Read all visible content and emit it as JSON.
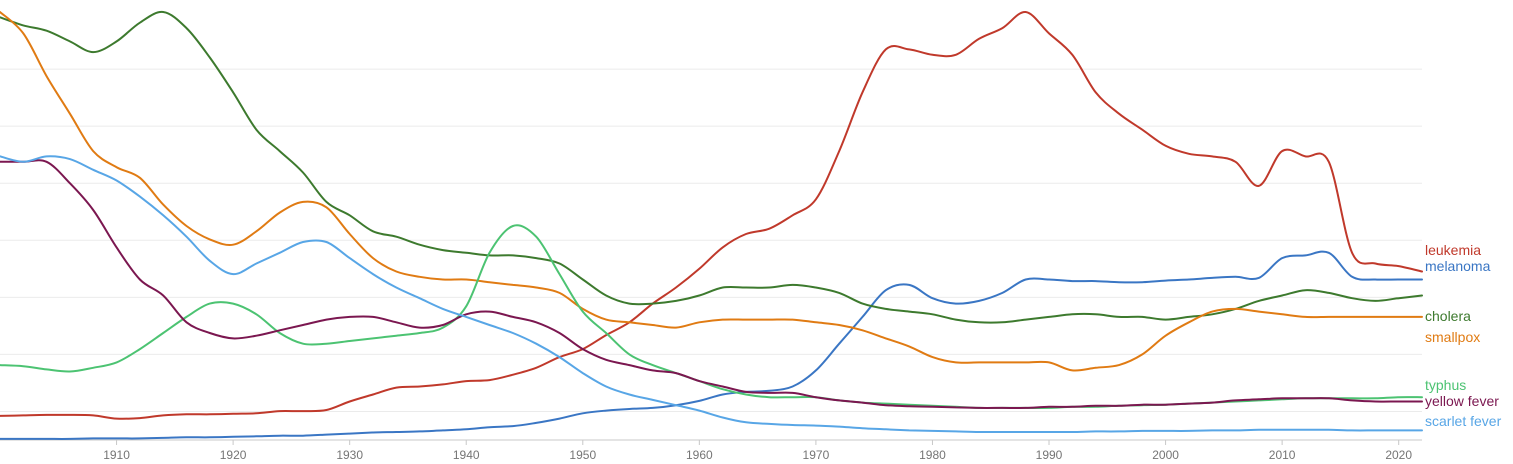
{
  "chart_data": {
    "type": "line",
    "x": [
      1900,
      1902,
      1904,
      1906,
      1908,
      1910,
      1912,
      1914,
      1916,
      1918,
      1920,
      1922,
      1924,
      1926,
      1928,
      1930,
      1932,
      1934,
      1936,
      1938,
      1940,
      1942,
      1944,
      1946,
      1948,
      1950,
      1952,
      1954,
      1956,
      1958,
      1960,
      1962,
      1964,
      1966,
      1968,
      1970,
      1972,
      1974,
      1976,
      1978,
      1980,
      1982,
      1984,
      1986,
      1988,
      1990,
      1992,
      1994,
      1996,
      1998,
      2000,
      2002,
      2004,
      2006,
      2008,
      2010,
      2012,
      2014,
      2016,
      2018,
      2020,
      2022
    ],
    "xlim": [
      1900,
      2022
    ],
    "ylim": [
      0,
      8
    ],
    "x_ticks": [
      1910,
      1920,
      1930,
      1940,
      1950,
      1960,
      1970,
      1980,
      1990,
      2000,
      2010,
      2020
    ],
    "grid": "horizontal",
    "legend": "right-end-labels",
    "series": [
      {
        "name": "leukemia",
        "color": "#c0392b",
        "values": [
          0.45,
          0.46,
          0.47,
          0.47,
          0.46,
          0.4,
          0.41,
          0.46,
          0.48,
          0.48,
          0.49,
          0.5,
          0.54,
          0.54,
          0.56,
          0.72,
          0.85,
          0.98,
          1.0,
          1.04,
          1.1,
          1.12,
          1.22,
          1.35,
          1.55,
          1.7,
          1.96,
          2.2,
          2.55,
          2.85,
          3.2,
          3.6,
          3.85,
          3.95,
          4.2,
          4.5,
          5.4,
          6.5,
          7.3,
          7.3,
          7.2,
          7.2,
          7.5,
          7.7,
          8.0,
          7.6,
          7.2,
          6.5,
          6.1,
          5.8,
          5.5,
          5.35,
          5.3,
          5.2,
          4.75,
          5.4,
          5.3,
          5.2,
          3.5,
          3.3,
          3.25,
          3.15
        ]
      },
      {
        "name": "melanoma",
        "color": "#3a76c4",
        "values": [
          0.02,
          0.02,
          0.02,
          0.02,
          0.03,
          0.03,
          0.03,
          0.04,
          0.05,
          0.05,
          0.06,
          0.07,
          0.08,
          0.08,
          0.1,
          0.12,
          0.14,
          0.15,
          0.16,
          0.18,
          0.2,
          0.24,
          0.26,
          0.32,
          0.4,
          0.5,
          0.55,
          0.58,
          0.6,
          0.65,
          0.73,
          0.85,
          0.9,
          0.92,
          1.0,
          1.3,
          1.8,
          2.3,
          2.8,
          2.9,
          2.65,
          2.55,
          2.6,
          2.75,
          3.0,
          3.0,
          2.97,
          2.97,
          2.95,
          2.95,
          2.98,
          3.0,
          3.03,
          3.05,
          3.03,
          3.4,
          3.45,
          3.5,
          3.05,
          3.0,
          3.0,
          3.0
        ]
      },
      {
        "name": "cholera",
        "color": "#3d7a2e",
        "values": [
          7.9,
          7.75,
          7.65,
          7.45,
          7.25,
          7.45,
          7.8,
          8.0,
          7.7,
          7.15,
          6.5,
          5.8,
          5.4,
          5.0,
          4.45,
          4.2,
          3.9,
          3.8,
          3.65,
          3.55,
          3.5,
          3.45,
          3.45,
          3.4,
          3.3,
          3.0,
          2.7,
          2.55,
          2.55,
          2.6,
          2.7,
          2.85,
          2.85,
          2.85,
          2.9,
          2.85,
          2.75,
          2.55,
          2.45,
          2.4,
          2.35,
          2.25,
          2.2,
          2.2,
          2.25,
          2.3,
          2.35,
          2.35,
          2.3,
          2.3,
          2.25,
          2.3,
          2.35,
          2.45,
          2.6,
          2.7,
          2.8,
          2.75,
          2.65,
          2.6,
          2.65,
          2.7
        ]
      },
      {
        "name": "smallpox",
        "color": "#e07b13",
        "values": [
          8.0,
          7.6,
          6.8,
          6.1,
          5.4,
          5.1,
          4.9,
          4.4,
          4.0,
          3.75,
          3.65,
          3.9,
          4.25,
          4.45,
          4.35,
          3.85,
          3.4,
          3.15,
          3.05,
          3.0,
          3.0,
          2.95,
          2.9,
          2.85,
          2.75,
          2.45,
          2.25,
          2.2,
          2.15,
          2.1,
          2.2,
          2.25,
          2.25,
          2.25,
          2.25,
          2.2,
          2.15,
          2.05,
          1.9,
          1.75,
          1.55,
          1.45,
          1.45,
          1.45,
          1.45,
          1.45,
          1.3,
          1.35,
          1.4,
          1.6,
          1.95,
          2.2,
          2.4,
          2.45,
          2.4,
          2.35,
          2.3,
          2.3,
          2.3,
          2.3,
          2.3,
          2.3
        ]
      },
      {
        "name": "typhus",
        "color": "#4cc372",
        "values": [
          1.4,
          1.38,
          1.32,
          1.28,
          1.35,
          1.45,
          1.7,
          2.0,
          2.3,
          2.55,
          2.55,
          2.35,
          2.0,
          1.8,
          1.8,
          1.85,
          1.9,
          1.95,
          2.0,
          2.1,
          2.5,
          3.5,
          4.0,
          3.8,
          3.1,
          2.4,
          2.0,
          1.6,
          1.4,
          1.25,
          1.1,
          0.95,
          0.85,
          0.8,
          0.8,
          0.8,
          0.74,
          0.7,
          0.68,
          0.66,
          0.64,
          0.62,
          0.6,
          0.6,
          0.6,
          0.6,
          0.62,
          0.62,
          0.64,
          0.65,
          0.66,
          0.68,
          0.7,
          0.72,
          0.74,
          0.76,
          0.78,
          0.78,
          0.78,
          0.78,
          0.8,
          0.8
        ]
      },
      {
        "name": "yellow fever",
        "color": "#7b1750",
        "values": [
          5.2,
          5.2,
          5.2,
          4.8,
          4.3,
          3.6,
          3.0,
          2.7,
          2.2,
          2.0,
          1.9,
          1.95,
          2.05,
          2.15,
          2.25,
          2.3,
          2.3,
          2.2,
          2.1,
          2.15,
          2.35,
          2.4,
          2.3,
          2.2,
          2.0,
          1.7,
          1.5,
          1.4,
          1.3,
          1.25,
          1.1,
          1.0,
          0.9,
          0.88,
          0.88,
          0.8,
          0.74,
          0.7,
          0.65,
          0.63,
          0.62,
          0.61,
          0.6,
          0.6,
          0.6,
          0.62,
          0.62,
          0.64,
          0.64,
          0.66,
          0.66,
          0.68,
          0.7,
          0.74,
          0.76,
          0.78,
          0.78,
          0.78,
          0.74,
          0.72,
          0.72,
          0.72
        ]
      },
      {
        "name": "scarlet fever",
        "color": "#58a6e6",
        "values": [
          5.3,
          5.2,
          5.3,
          5.25,
          5.05,
          4.85,
          4.55,
          4.2,
          3.8,
          3.35,
          3.1,
          3.3,
          3.5,
          3.7,
          3.7,
          3.4,
          3.1,
          2.85,
          2.65,
          2.45,
          2.3,
          2.15,
          2.0,
          1.8,
          1.55,
          1.25,
          1.0,
          0.85,
          0.75,
          0.65,
          0.55,
          0.42,
          0.33,
          0.3,
          0.28,
          0.27,
          0.25,
          0.22,
          0.2,
          0.18,
          0.17,
          0.16,
          0.15,
          0.15,
          0.15,
          0.15,
          0.15,
          0.16,
          0.16,
          0.17,
          0.17,
          0.17,
          0.18,
          0.18,
          0.19,
          0.19,
          0.19,
          0.19,
          0.18,
          0.18,
          0.18,
          0.18
        ]
      }
    ]
  }
}
